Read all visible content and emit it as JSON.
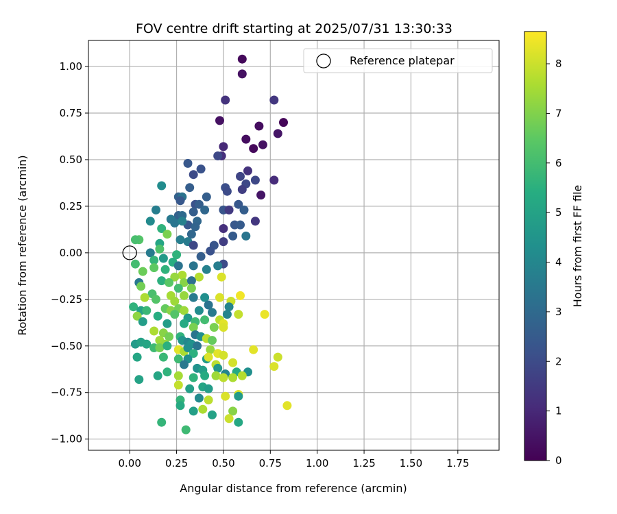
{
  "chart_data": {
    "type": "scatter",
    "title": "FOV centre drift starting at 2025/07/31 13:30:33",
    "xlabel": "Angular distance from reference (arcmin)",
    "ylabel": "Rotation from reference (arcmin)",
    "colorbar_label": "Hours from first FF file",
    "xlim": [
      -0.22,
      1.97
    ],
    "ylim": [
      -1.06,
      1.14
    ],
    "clim": [
      0,
      8.65
    ],
    "x_ticks": [
      0.0,
      0.25,
      0.5,
      0.75,
      1.0,
      1.25,
      1.5,
      1.75
    ],
    "x_tick_labels": [
      "0.00",
      "0.25",
      "0.50",
      "0.75",
      "1.00",
      "1.25",
      "1.50",
      "1.75"
    ],
    "y_ticks": [
      -1.0,
      -0.75,
      -0.5,
      -0.25,
      0.0,
      0.25,
      0.5,
      0.75,
      1.0
    ],
    "y_tick_labels": [
      "−1.00",
      "−0.75",
      "−0.50",
      "−0.25",
      "0.00",
      "0.25",
      "0.50",
      "0.75",
      "1.00"
    ],
    "c_ticks": [
      0,
      1,
      2,
      3,
      4,
      5,
      6,
      7,
      8
    ],
    "c_tick_labels": [
      "0",
      "1",
      "2",
      "3",
      "4",
      "5",
      "6",
      "7",
      "8"
    ],
    "grid": true,
    "colormap": "viridis",
    "legend": {
      "position": "top-right",
      "entries": [
        "Reference platepar"
      ]
    },
    "reference_point": {
      "name": "Reference platepar",
      "x": 0.0,
      "y": 0.0
    },
    "series": [
      {
        "points": [
          [
            0.6,
            1.04,
            0.2
          ],
          [
            0.6,
            0.96,
            0.4
          ],
          [
            0.51,
            0.82,
            1.3
          ],
          [
            0.77,
            0.82,
            1.4
          ],
          [
            0.48,
            0.71,
            0.4
          ],
          [
            0.82,
            0.7,
            0.1
          ],
          [
            0.69,
            0.68,
            0.3
          ],
          [
            0.79,
            0.64,
            0.5
          ],
          [
            0.62,
            0.61,
            0.3
          ],
          [
            0.71,
            0.58,
            0.4
          ],
          [
            0.66,
            0.56,
            0.2
          ],
          [
            0.5,
            0.57,
            1.0
          ],
          [
            0.49,
            0.52,
            1.2
          ],
          [
            0.47,
            0.52,
            1.9
          ],
          [
            0.31,
            0.48,
            2.4
          ],
          [
            0.38,
            0.45,
            2.2
          ],
          [
            0.34,
            0.42,
            2.0
          ],
          [
            0.63,
            0.44,
            1.3
          ],
          [
            0.59,
            0.41,
            1.8
          ],
          [
            0.67,
            0.39,
            1.9
          ],
          [
            0.77,
            0.39,
            1.1
          ],
          [
            0.62,
            0.37,
            1.9
          ],
          [
            0.51,
            0.35,
            2.1
          ],
          [
            0.6,
            0.34,
            1.6
          ],
          [
            0.7,
            0.31,
            0.5
          ],
          [
            0.52,
            0.33,
            2.0
          ],
          [
            0.17,
            0.36,
            4.2
          ],
          [
            0.32,
            0.35,
            2.6
          ],
          [
            0.41,
            0.3,
            2.6
          ],
          [
            0.26,
            0.3,
            2.7
          ],
          [
            0.28,
            0.3,
            3.3
          ],
          [
            0.27,
            0.28,
            2.4
          ],
          [
            0.35,
            0.26,
            2.2
          ],
          [
            0.37,
            0.26,
            2.6
          ],
          [
            0.4,
            0.23,
            2.9
          ],
          [
            0.5,
            0.23,
            2.3
          ],
          [
            0.53,
            0.23,
            1.5
          ],
          [
            0.58,
            0.26,
            2.4
          ],
          [
            0.61,
            0.23,
            2.6
          ],
          [
            0.14,
            0.23,
            3.7
          ],
          [
            0.26,
            0.2,
            2.7
          ],
          [
            0.28,
            0.2,
            3.0
          ],
          [
            0.34,
            0.22,
            2.6
          ],
          [
            0.31,
            0.15,
            2.4
          ],
          [
            0.36,
            0.17,
            2.9
          ],
          [
            0.22,
            0.18,
            3.5
          ],
          [
            0.24,
            0.16,
            3.4
          ],
          [
            0.28,
            0.17,
            3.8
          ],
          [
            0.11,
            0.17,
            4.1
          ],
          [
            0.35,
            0.14,
            2.8
          ],
          [
            0.56,
            0.15,
            2.4
          ],
          [
            0.59,
            0.15,
            2.5
          ],
          [
            0.67,
            0.17,
            1.4
          ],
          [
            0.5,
            0.13,
            1.2
          ],
          [
            0.17,
            0.13,
            5.6
          ],
          [
            0.33,
            0.1,
            2.9
          ],
          [
            0.55,
            0.09,
            2.5
          ],
          [
            0.62,
            0.09,
            3.4
          ],
          [
            0.2,
            0.1,
            6.9
          ],
          [
            0.5,
            0.06,
            1.6
          ],
          [
            0.45,
            0.04,
            2.3
          ],
          [
            0.27,
            0.07,
            3.7
          ],
          [
            0.31,
            0.06,
            3.6
          ],
          [
            0.34,
            0.04,
            1.9
          ],
          [
            0.05,
            0.07,
            6.3
          ],
          [
            0.03,
            0.07,
            6.1
          ],
          [
            0.16,
            0.05,
            5.1
          ],
          [
            0.43,
            0.01,
            2.2
          ],
          [
            0.11,
            0.0,
            3.6
          ],
          [
            0.16,
            0.02,
            6.2
          ],
          [
            0.25,
            -0.01,
            5.6
          ],
          [
            0.38,
            -0.02,
            2.6
          ],
          [
            0.5,
            -0.06,
            2.0
          ],
          [
            0.13,
            -0.04,
            5.7
          ],
          [
            0.18,
            -0.03,
            4.7
          ],
          [
            0.23,
            -0.05,
            5.4
          ],
          [
            0.03,
            -0.06,
            6.0
          ],
          [
            0.13,
            -0.08,
            6.5
          ],
          [
            0.07,
            -0.1,
            6.7
          ],
          [
            0.19,
            -0.09,
            5.6
          ],
          [
            0.26,
            -0.07,
            3.3
          ],
          [
            0.34,
            -0.07,
            3.4
          ],
          [
            0.41,
            -0.09,
            3.8
          ],
          [
            0.47,
            -0.07,
            3.7
          ],
          [
            0.49,
            -0.13,
            8.2
          ],
          [
            0.28,
            -0.12,
            7.6
          ],
          [
            0.24,
            -0.13,
            7.3
          ],
          [
            0.37,
            -0.13,
            7.7
          ],
          [
            0.05,
            -0.16,
            3.5
          ],
          [
            0.17,
            -0.15,
            5.5
          ],
          [
            0.21,
            -0.16,
            6.4
          ],
          [
            0.29,
            -0.16,
            7.1
          ],
          [
            0.33,
            -0.15,
            3.2
          ],
          [
            0.26,
            -0.19,
            6.0
          ],
          [
            0.33,
            -0.19,
            6.9
          ],
          [
            0.06,
            -0.18,
            6.8
          ],
          [
            0.12,
            -0.22,
            6.1
          ],
          [
            0.14,
            -0.25,
            6.3
          ],
          [
            0.22,
            -0.23,
            7.5
          ],
          [
            0.24,
            -0.26,
            7.4
          ],
          [
            0.29,
            -0.23,
            7.3
          ],
          [
            0.34,
            -0.24,
            3.6
          ],
          [
            0.4,
            -0.24,
            4.3
          ],
          [
            0.48,
            -0.24,
            8.2
          ],
          [
            0.54,
            -0.26,
            8.0
          ],
          [
            0.59,
            -0.23,
            8.5
          ],
          [
            0.08,
            -0.24,
            7.6
          ],
          [
            0.42,
            -0.28,
            3.3
          ],
          [
            0.53,
            -0.29,
            3.9
          ],
          [
            0.02,
            -0.29,
            5.6
          ],
          [
            0.06,
            -0.31,
            5.0
          ],
          [
            0.09,
            -0.31,
            5.8
          ],
          [
            0.19,
            -0.3,
            6.6
          ],
          [
            0.22,
            -0.31,
            7.1
          ],
          [
            0.26,
            -0.3,
            6.8
          ],
          [
            0.29,
            -0.31,
            7.4
          ],
          [
            0.37,
            -0.31,
            4.2
          ],
          [
            0.44,
            -0.32,
            3.6
          ],
          [
            0.52,
            -0.33,
            3.9
          ],
          [
            0.58,
            -0.33,
            7.9
          ],
          [
            0.72,
            -0.33,
            8.4
          ],
          [
            0.04,
            -0.34,
            7.2
          ],
          [
            0.15,
            -0.34,
            5.4
          ],
          [
            0.24,
            -0.33,
            6.3
          ],
          [
            0.31,
            -0.35,
            4.7
          ],
          [
            0.35,
            -0.37,
            5.9
          ],
          [
            0.4,
            -0.36,
            6.0
          ],
          [
            0.48,
            -0.36,
            7.8
          ],
          [
            0.5,
            -0.38,
            8.3
          ],
          [
            0.07,
            -0.37,
            4.8
          ],
          [
            0.2,
            -0.38,
            4.8
          ],
          [
            0.29,
            -0.38,
            5.3
          ],
          [
            0.34,
            -0.4,
            6.9
          ],
          [
            0.45,
            -0.4,
            6.9
          ],
          [
            0.5,
            -0.4,
            8.2
          ],
          [
            0.13,
            -0.42,
            7.6
          ],
          [
            0.18,
            -0.43,
            7.1
          ],
          [
            0.21,
            -0.45,
            6.8
          ],
          [
            0.27,
            -0.45,
            5.6
          ],
          [
            0.35,
            -0.44,
            3.4
          ],
          [
            0.38,
            -0.45,
            4.3
          ],
          [
            0.41,
            -0.46,
            7.8
          ],
          [
            0.44,
            -0.47,
            6.6
          ],
          [
            0.16,
            -0.47,
            7.4
          ],
          [
            0.19,
            -0.49,
            7.3
          ],
          [
            0.28,
            -0.47,
            4.5
          ],
          [
            0.31,
            -0.48,
            4.0
          ],
          [
            0.33,
            -0.49,
            4.4
          ],
          [
            0.36,
            -0.5,
            3.4
          ],
          [
            0.43,
            -0.52,
            7.3
          ],
          [
            0.03,
            -0.49,
            4.7
          ],
          [
            0.06,
            -0.48,
            5.0
          ],
          [
            0.09,
            -0.49,
            5.1
          ],
          [
            0.13,
            -0.51,
            5.9
          ],
          [
            0.16,
            -0.51,
            6.8
          ],
          [
            0.2,
            -0.5,
            5.5
          ],
          [
            0.26,
            -0.52,
            8.3
          ],
          [
            0.29,
            -0.53,
            7.6
          ],
          [
            0.31,
            -0.51,
            4.3
          ],
          [
            0.34,
            -0.54,
            5.5
          ],
          [
            0.47,
            -0.54,
            8.3
          ],
          [
            0.5,
            -0.55,
            8.1
          ],
          [
            0.66,
            -0.52,
            8.3
          ],
          [
            0.79,
            -0.56,
            8.0
          ],
          [
            0.04,
            -0.56,
            5.1
          ],
          [
            0.18,
            -0.56,
            5.8
          ],
          [
            0.26,
            -0.57,
            5.9
          ],
          [
            0.31,
            -0.57,
            4.3
          ],
          [
            0.41,
            -0.57,
            4.7
          ],
          [
            0.42,
            -0.56,
            8.2
          ],
          [
            0.46,
            -0.6,
            7.8
          ],
          [
            0.55,
            -0.59,
            8.1
          ],
          [
            0.2,
            -0.64,
            5.6
          ],
          [
            0.29,
            -0.6,
            3.5
          ],
          [
            0.36,
            -0.62,
            4.4
          ],
          [
            0.39,
            -0.63,
            4.9
          ],
          [
            0.47,
            -0.62,
            4.6
          ],
          [
            0.51,
            -0.65,
            3.9
          ],
          [
            0.57,
            -0.64,
            5.3
          ],
          [
            0.63,
            -0.64,
            4.3
          ],
          [
            0.77,
            -0.61,
            8.2
          ],
          [
            0.15,
            -0.66,
            5.1
          ],
          [
            0.26,
            -0.66,
            7.5
          ],
          [
            0.34,
            -0.67,
            5.6
          ],
          [
            0.4,
            -0.66,
            5.3
          ],
          [
            0.46,
            -0.66,
            7.4
          ],
          [
            0.5,
            -0.67,
            7.8
          ],
          [
            0.55,
            -0.67,
            7.6
          ],
          [
            0.6,
            -0.66,
            7.7
          ],
          [
            0.05,
            -0.68,
            5.0
          ],
          [
            0.26,
            -0.71,
            7.9
          ],
          [
            0.32,
            -0.73,
            4.9
          ],
          [
            0.39,
            -0.72,
            5.1
          ],
          [
            0.42,
            -0.73,
            4.8
          ],
          [
            0.51,
            -0.77,
            8.2
          ],
          [
            0.58,
            -0.76,
            8.2
          ],
          [
            0.58,
            -0.77,
            4.7
          ],
          [
            0.27,
            -0.79,
            5.7
          ],
          [
            0.37,
            -0.78,
            4.1
          ],
          [
            0.42,
            -0.79,
            7.8
          ],
          [
            0.27,
            -0.82,
            5.3
          ],
          [
            0.39,
            -0.84,
            7.6
          ],
          [
            0.34,
            -0.85,
            4.9
          ],
          [
            0.44,
            -0.87,
            5.0
          ],
          [
            0.55,
            -0.85,
            7.1
          ],
          [
            0.84,
            -0.82,
            8.3
          ],
          [
            0.17,
            -0.91,
            5.7
          ],
          [
            0.58,
            -0.91,
            5.2
          ],
          [
            0.3,
            -0.95,
            5.9
          ],
          [
            0.53,
            -0.89,
            8.0
          ]
        ]
      }
    ]
  }
}
